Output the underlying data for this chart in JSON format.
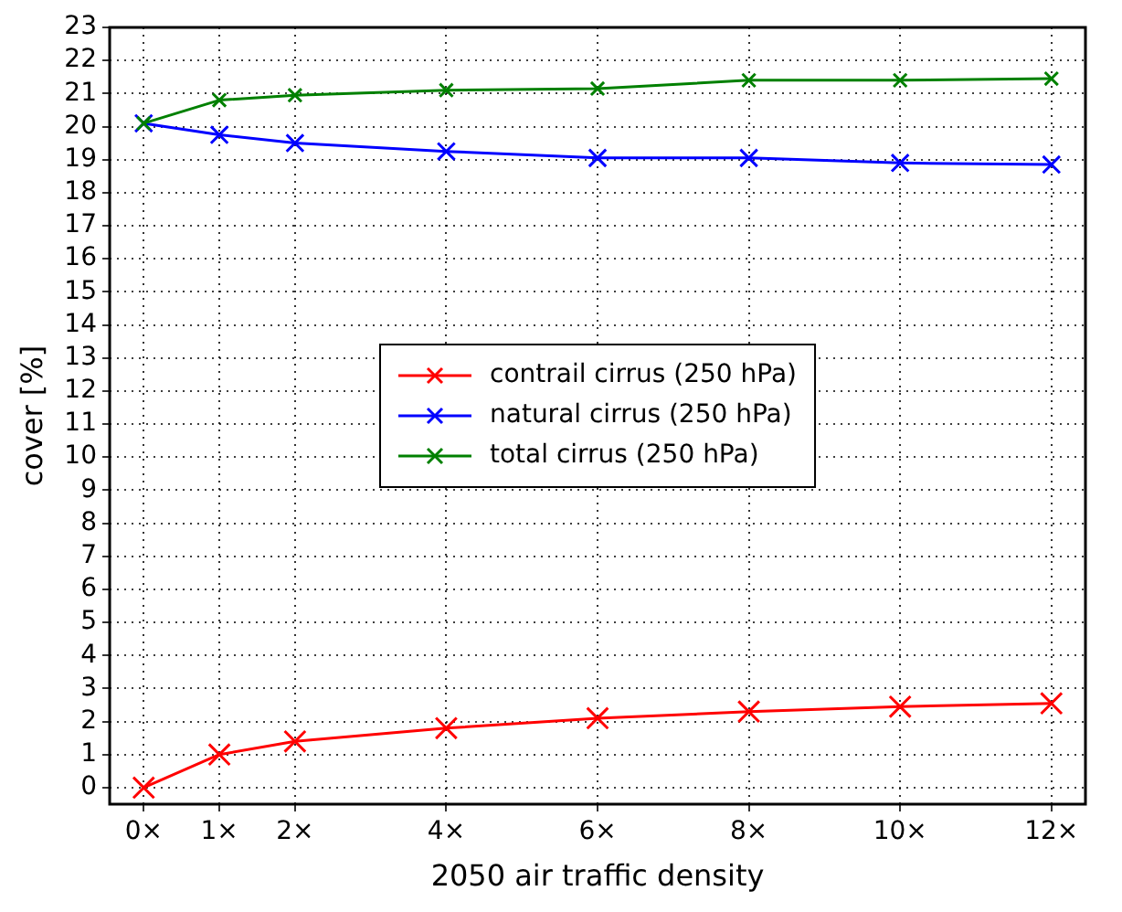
{
  "chart_data": {
    "type": "line",
    "xlabel": "2050 air traffic density",
    "ylabel": "cover [%]",
    "x": [
      0,
      1,
      2,
      4,
      6,
      8,
      10,
      12
    ],
    "series": [
      {
        "name": "contrail cirrus (250 hPa)",
        "color": "#ff0000",
        "values": [
          0,
          1.0,
          1.4,
          1.8,
          2.1,
          2.3,
          2.45,
          2.55
        ]
      },
      {
        "name": "natural cirrus (250 hPa)",
        "color": "#0000ff",
        "values": [
          20.1,
          19.75,
          19.5,
          19.25,
          19.05,
          19.05,
          18.9,
          18.85
        ]
      },
      {
        "name": "total cirrus (250 hPa)",
        "color": "#008000",
        "values": [
          20.1,
          20.8,
          20.95,
          21.1,
          21.15,
          21.4,
          21.4,
          21.45
        ]
      }
    ],
    "xlim": [
      -0.45,
      12.45
    ],
    "xticks": [
      {
        "value": 0,
        "label": "0×"
      },
      {
        "value": 1,
        "label": "1×"
      },
      {
        "value": 2,
        "label": "2×"
      },
      {
        "value": 4,
        "label": "4×"
      },
      {
        "value": 6,
        "label": "6×"
      },
      {
        "value": 8,
        "label": "8×"
      },
      {
        "value": 10,
        "label": "10×"
      },
      {
        "value": 12,
        "label": "12×"
      }
    ],
    "ylim": [
      -0.5,
      23
    ],
    "yticks": [
      0,
      1,
      2,
      3,
      4,
      5,
      6,
      7,
      8,
      9,
      10,
      11,
      12,
      13,
      14,
      15,
      16,
      17,
      18,
      19,
      20,
      21,
      22,
      23
    ],
    "grid": true,
    "legend": "center",
    "marker": "cross",
    "line_style": "solid"
  }
}
